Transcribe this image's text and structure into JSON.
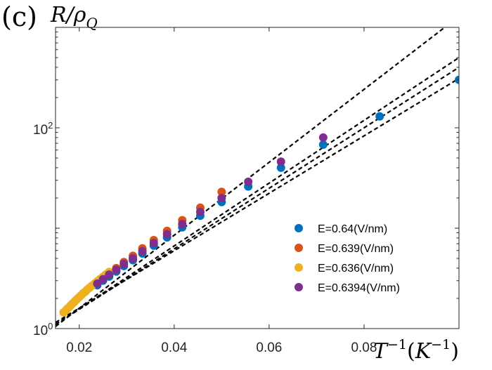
{
  "chart_data": {
    "type": "scatter",
    "panel_label": "(c)",
    "ylabel": {
      "italic": "R/ρ",
      "sub": "Q"
    },
    "xlabel": {
      "italic": "T",
      "sup": "−1",
      "paren_open": "(",
      "unit": "K",
      "unit_sup": "−1",
      "paren_close": ")"
    },
    "xscale": "linear",
    "yscale": "log",
    "xlim": [
      0.015,
      0.1
    ],
    "ylim": [
      1,
      1000
    ],
    "x_ticks": [
      0.02,
      0.04,
      0.06,
      0.08
    ],
    "x_tick_labels": [
      "0.02",
      "0.04",
      "0.06",
      "0.08"
    ],
    "y_ticks": [
      1,
      100
    ],
    "y_tick_labels": [
      {
        "base": "10",
        "exp": "0"
      },
      {
        "base": "10",
        "exp": "2"
      }
    ],
    "legend_position": "center-right",
    "series": [
      {
        "name": "E=0.64(V/nm)",
        "color": "#0072BD",
        "x": [
          0.0238,
          0.025,
          0.0263,
          0.0278,
          0.0294,
          0.0313,
          0.0333,
          0.0357,
          0.0385,
          0.0417,
          0.0455,
          0.05,
          0.0556,
          0.0625,
          0.0714,
          0.0833,
          0.1
        ],
        "y": [
          2.7,
          3.0,
          3.3,
          3.7,
          4.2,
          4.8,
          5.6,
          6.7,
          8.1,
          10.2,
          13.3,
          18.2,
          26.0,
          40.0,
          68.0,
          130.0,
          300.0
        ]
      },
      {
        "name": "E=0.639(V/nm)",
        "color": "#D95319",
        "x": [
          0.0238,
          0.025,
          0.0263,
          0.0278,
          0.0294,
          0.0313,
          0.0333,
          0.0357,
          0.0385,
          0.0417,
          0.0455,
          0.05
        ],
        "y": [
          2.9,
          3.2,
          3.6,
          4.0,
          4.6,
          5.3,
          6.3,
          7.6,
          9.4,
          12.0,
          16.0,
          23.0
        ]
      },
      {
        "name": "E=0.636(V/nm)",
        "color": "#EDB120",
        "x": [
          0.0167,
          0.0172,
          0.0175,
          0.0179,
          0.0182,
          0.0185,
          0.0189,
          0.0192,
          0.0196,
          0.02,
          0.0204,
          0.0208,
          0.0213,
          0.0217,
          0.0222,
          0.0227,
          0.0233,
          0.0238,
          0.0244,
          0.025,
          0.0256,
          0.0263
        ],
        "y": [
          1.45,
          1.52,
          1.58,
          1.64,
          1.7,
          1.76,
          1.83,
          1.9,
          1.98,
          2.06,
          2.15,
          2.24,
          2.34,
          2.45,
          2.56,
          2.68,
          2.82,
          2.96,
          3.12,
          3.28,
          3.46,
          3.66
        ]
      },
      {
        "name": "E=0.6394(V/nm)",
        "color": "#7E2F8E",
        "x": [
          0.0238,
          0.025,
          0.0263,
          0.0278,
          0.0294,
          0.0313,
          0.0333,
          0.0357,
          0.0385,
          0.0417,
          0.0455,
          0.05,
          0.0556,
          0.0625,
          0.0714
        ],
        "y": [
          2.8,
          3.1,
          3.45,
          3.85,
          4.4,
          5.0,
          5.9,
          7.1,
          8.7,
          11.0,
          14.5,
          20.0,
          29.0,
          46.0,
          80.0
        ]
      }
    ],
    "fit_lines": [
      {
        "style": "dashed",
        "x": [
          0.015,
          0.097
        ],
        "y": [
          1.05,
          1000
        ]
      },
      {
        "style": "dashed",
        "x": [
          0.015,
          0.1
        ],
        "y": [
          1.1,
          500
        ]
      },
      {
        "style": "dashed",
        "x": [
          0.015,
          0.1
        ],
        "y": [
          1.1,
          400
        ]
      },
      {
        "style": "dashed",
        "x": [
          0.015,
          0.1
        ],
        "y": [
          1.15,
          310
        ]
      }
    ]
  }
}
